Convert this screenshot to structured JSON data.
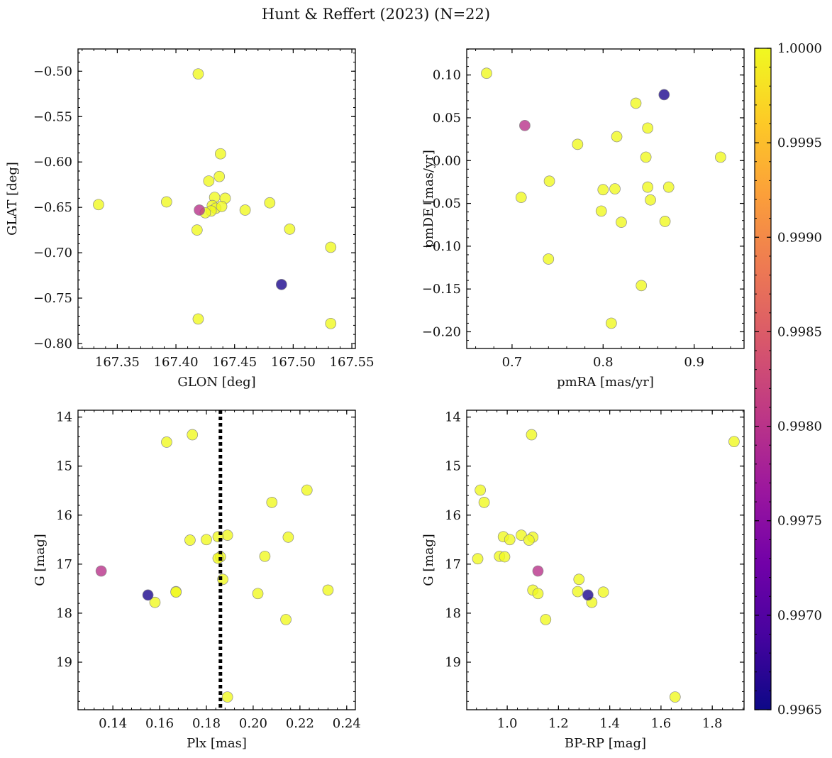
{
  "figure_title": "Hunt & Reffert (2023) (N=22)",
  "colors": {
    "cmap": [
      "#0d0887",
      "#46039f",
      "#7201a8",
      "#9c179e",
      "#bd3786",
      "#d8576b",
      "#ed7953",
      "#fb9f3a",
      "#fdca26",
      "#f0f921"
    ],
    "marker_edge": "#8a8a8a",
    "vline": "#000000"
  },
  "colorbar": {
    "min": 0.9965,
    "max": 1.0,
    "ticks": [
      0.9965,
      0.997,
      0.9975,
      0.998,
      0.9985,
      0.999,
      0.9995,
      1.0
    ],
    "tick_labels": [
      "0.9965",
      "0.9970",
      "0.9975",
      "0.9980",
      "0.9985",
      "0.9990",
      "0.9995",
      "1.0000"
    ]
  },
  "chart_data": [
    {
      "type": "scatter",
      "xlabel": "GLON [deg]",
      "ylabel": "GLAT [deg]",
      "xlim": [
        167.3165,
        167.553
      ],
      "ylim": [
        -0.8055,
        -0.4755
      ],
      "xticks": [
        167.35,
        167.4,
        167.45,
        167.5,
        167.55
      ],
      "xtick_labels": [
        "167.35",
        "167.40",
        "167.45",
        "167.50",
        "167.55"
      ],
      "yticks": [
        -0.8,
        -0.75,
        -0.7,
        -0.65,
        -0.6,
        -0.55,
        -0.5
      ],
      "ytick_labels": [
        "−0.80",
        "−0.75",
        "−0.70",
        "−0.65",
        "−0.60",
        "−0.55",
        "−0.50"
      ],
      "points": [
        {
          "x": 167.419,
          "y": -0.503,
          "c": 1.0
        },
        {
          "x": 167.334,
          "y": -0.647,
          "c": 1.0
        },
        {
          "x": 167.392,
          "y": -0.644,
          "c": 1.0
        },
        {
          "x": 167.438,
          "y": -0.591,
          "c": 1.0
        },
        {
          "x": 167.437,
          "y": -0.616,
          "c": 1.0
        },
        {
          "x": 167.428,
          "y": -0.621,
          "c": 1.0
        },
        {
          "x": 167.433,
          "y": -0.639,
          "c": 1.0
        },
        {
          "x": 167.442,
          "y": -0.64,
          "c": 1.0
        },
        {
          "x": 167.431,
          "y": -0.648,
          "c": 1.0
        },
        {
          "x": 167.434,
          "y": -0.651,
          "c": 1.0
        },
        {
          "x": 167.439,
          "y": -0.649,
          "c": 1.0
        },
        {
          "x": 167.43,
          "y": -0.654,
          "c": 1.0
        },
        {
          "x": 167.425,
          "y": -0.656,
          "c": 1.0
        },
        {
          "x": 167.418,
          "y": -0.675,
          "c": 1.0
        },
        {
          "x": 167.459,
          "y": -0.653,
          "c": 1.0
        },
        {
          "x": 167.48,
          "y": -0.645,
          "c": 1.0
        },
        {
          "x": 167.497,
          "y": -0.674,
          "c": 1.0
        },
        {
          "x": 167.532,
          "y": -0.694,
          "c": 1.0
        },
        {
          "x": 167.419,
          "y": -0.773,
          "c": 1.0
        },
        {
          "x": 167.532,
          "y": -0.778,
          "c": 1.0
        },
        {
          "x": 167.42,
          "y": -0.653,
          "c": 0.998
        },
        {
          "x": 167.49,
          "y": -0.735,
          "c": 0.9966
        }
      ]
    },
    {
      "type": "scatter",
      "xlabel": "pmRA [mas/yr]",
      "ylabel": "pmDE [mas/yr]",
      "xlim": [
        0.6502,
        0.9548
      ],
      "ylim": [
        -0.2195,
        0.1304
      ],
      "xticks": [
        0.7,
        0.8,
        0.9
      ],
      "xtick_labels": [
        "0.7",
        "0.8",
        "0.9"
      ],
      "yticks": [
        -0.2,
        -0.15,
        -0.1,
        -0.05,
        0.0,
        0.05,
        0.1
      ],
      "ytick_labels": [
        "−0.20",
        "−0.15",
        "−0.10",
        "−0.05",
        "0.00",
        "0.05",
        "0.10"
      ],
      "points": [
        {
          "x": 0.672,
          "y": 0.102,
          "c": 1.0
        },
        {
          "x": 0.836,
          "y": 0.067,
          "c": 1.0
        },
        {
          "x": 0.849,
          "y": 0.038,
          "c": 1.0
        },
        {
          "x": 0.815,
          "y": 0.028,
          "c": 1.0
        },
        {
          "x": 0.772,
          "y": 0.019,
          "c": 1.0
        },
        {
          "x": 0.847,
          "y": 0.004,
          "c": 1.0
        },
        {
          "x": 0.929,
          "y": 0.004,
          "c": 1.0
        },
        {
          "x": 0.741,
          "y": -0.024,
          "c": 1.0
        },
        {
          "x": 0.8,
          "y": -0.034,
          "c": 1.0
        },
        {
          "x": 0.813,
          "y": -0.033,
          "c": 1.0
        },
        {
          "x": 0.849,
          "y": -0.031,
          "c": 1.0
        },
        {
          "x": 0.872,
          "y": -0.031,
          "c": 1.0
        },
        {
          "x": 0.71,
          "y": -0.043,
          "c": 1.0
        },
        {
          "x": 0.852,
          "y": -0.046,
          "c": 1.0
        },
        {
          "x": 0.798,
          "y": -0.059,
          "c": 1.0
        },
        {
          "x": 0.82,
          "y": -0.072,
          "c": 1.0
        },
        {
          "x": 0.868,
          "y": -0.071,
          "c": 1.0
        },
        {
          "x": 0.74,
          "y": -0.115,
          "c": 1.0
        },
        {
          "x": 0.842,
          "y": -0.146,
          "c": 1.0
        },
        {
          "x": 0.809,
          "y": -0.19,
          "c": 1.0
        },
        {
          "x": 0.714,
          "y": 0.041,
          "c": 0.998
        },
        {
          "x": 0.867,
          "y": 0.077,
          "c": 0.9966
        }
      ]
    },
    {
      "type": "scatter",
      "xlabel": "Plx [mas]",
      "ylabel": "G [mag]",
      "xlim": [
        0.1251,
        0.2437
      ],
      "ylim": [
        19.97,
        13.86
      ],
      "y_inverted": true,
      "xticks": [
        0.14,
        0.16,
        0.18,
        0.2,
        0.22,
        0.24
      ],
      "xtick_labels": [
        "0.14",
        "0.16",
        "0.18",
        "0.20",
        "0.22",
        "0.24"
      ],
      "yticks": [
        14,
        15,
        16,
        17,
        18,
        19
      ],
      "ytick_labels": [
        "14",
        "15",
        "16",
        "17",
        "18",
        "19"
      ],
      "vline": 0.186,
      "points": [
        {
          "x": 0.174,
          "y": 14.36,
          "c": 1.0
        },
        {
          "x": 0.163,
          "y": 14.51,
          "c": 1.0
        },
        {
          "x": 0.223,
          "y": 15.49,
          "c": 1.0
        },
        {
          "x": 0.208,
          "y": 15.74,
          "c": 1.0
        },
        {
          "x": 0.189,
          "y": 16.41,
          "c": 1.0
        },
        {
          "x": 0.185,
          "y": 16.44,
          "c": 1.0
        },
        {
          "x": 0.215,
          "y": 16.45,
          "c": 1.0
        },
        {
          "x": 0.18,
          "y": 16.5,
          "c": 1.0
        },
        {
          "x": 0.173,
          "y": 16.51,
          "c": 1.0
        },
        {
          "x": 0.205,
          "y": 16.84,
          "c": 1.0
        },
        {
          "x": 0.186,
          "y": 16.85,
          "c": 1.0
        },
        {
          "x": 0.185,
          "y": 16.88,
          "c": 1.0
        },
        {
          "x": 0.187,
          "y": 17.31,
          "c": 1.0
        },
        {
          "x": 0.232,
          "y": 17.53,
          "c": 1.0
        },
        {
          "x": 0.167,
          "y": 17.56,
          "c": 1.0
        },
        {
          "x": 0.167,
          "y": 17.57,
          "c": 1.0
        },
        {
          "x": 0.202,
          "y": 17.6,
          "c": 1.0
        },
        {
          "x": 0.158,
          "y": 17.78,
          "c": 1.0
        },
        {
          "x": 0.214,
          "y": 18.13,
          "c": 1.0
        },
        {
          "x": 0.189,
          "y": 19.71,
          "c": 1.0
        },
        {
          "x": 0.135,
          "y": 17.14,
          "c": 0.998
        },
        {
          "x": 0.155,
          "y": 17.63,
          "c": 0.9966
        }
      ]
    },
    {
      "type": "scatter",
      "xlabel": "BP-RP [mag]",
      "ylabel": "G [mag]",
      "xlim": [
        0.842,
        1.924
      ],
      "ylim": [
        19.97,
        13.86
      ],
      "y_inverted": true,
      "xticks": [
        1.0,
        1.2,
        1.4,
        1.6,
        1.8
      ],
      "xtick_labels": [
        "1.0",
        "1.2",
        "1.4",
        "1.6",
        "1.8"
      ],
      "yticks": [
        14,
        15,
        16,
        17,
        18,
        19
      ],
      "ytick_labels": [
        "14",
        "15",
        "16",
        "17",
        "18",
        "19"
      ],
      "points": [
        {
          "x": 1.095,
          "y": 14.36,
          "c": 1.0
        },
        {
          "x": 1.885,
          "y": 14.5,
          "c": 1.0
        },
        {
          "x": 0.895,
          "y": 15.49,
          "c": 1.0
        },
        {
          "x": 0.91,
          "y": 15.74,
          "c": 1.0
        },
        {
          "x": 0.985,
          "y": 16.44,
          "c": 1.0
        },
        {
          "x": 1.055,
          "y": 16.41,
          "c": 1.0
        },
        {
          "x": 1.1,
          "y": 16.45,
          "c": 1.0
        },
        {
          "x": 1.01,
          "y": 16.5,
          "c": 1.0
        },
        {
          "x": 1.085,
          "y": 16.51,
          "c": 1.0
        },
        {
          "x": 0.97,
          "y": 16.84,
          "c": 1.0
        },
        {
          "x": 0.99,
          "y": 16.85,
          "c": 1.0
        },
        {
          "x": 0.885,
          "y": 16.89,
          "c": 1.0
        },
        {
          "x": 1.28,
          "y": 17.31,
          "c": 1.0
        },
        {
          "x": 1.1,
          "y": 17.53,
          "c": 1.0
        },
        {
          "x": 1.275,
          "y": 17.56,
          "c": 1.0
        },
        {
          "x": 1.375,
          "y": 17.57,
          "c": 1.0
        },
        {
          "x": 1.12,
          "y": 17.6,
          "c": 1.0
        },
        {
          "x": 1.33,
          "y": 17.78,
          "c": 1.0
        },
        {
          "x": 1.15,
          "y": 18.13,
          "c": 1.0
        },
        {
          "x": 1.655,
          "y": 19.71,
          "c": 1.0
        },
        {
          "x": 1.12,
          "y": 17.14,
          "c": 0.998
        },
        {
          "x": 1.315,
          "y": 17.63,
          "c": 0.9966
        }
      ]
    }
  ]
}
